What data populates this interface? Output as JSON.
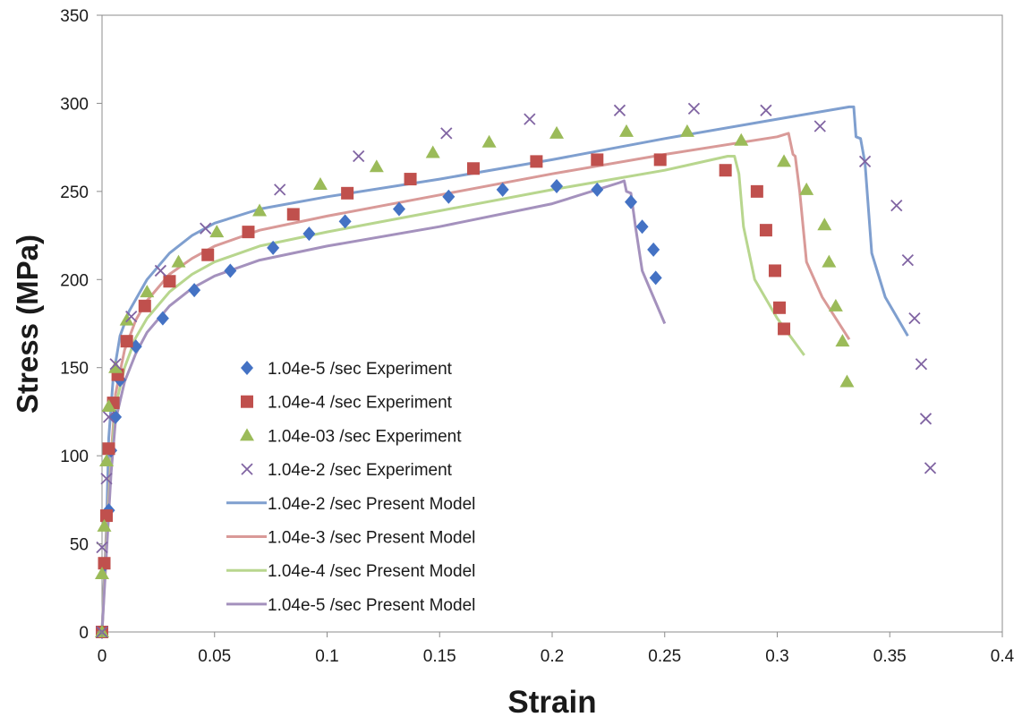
{
  "chart_data": {
    "type": "scatter",
    "title": "",
    "xlabel": "Strain",
    "ylabel": "Stress (MPa)",
    "xlim": [
      0,
      0.4
    ],
    "ylim": [
      0,
      350
    ],
    "x_ticks": [
      "0",
      "0.05",
      "0.1",
      "0.15",
      "0.2",
      "0.25",
      "0.3",
      "0.35",
      "0.4"
    ],
    "y_ticks": [
      "0",
      "50",
      "100",
      "150",
      "200",
      "250",
      "300",
      "350"
    ],
    "grid": false,
    "legend_position": "left-inside",
    "series": [
      {
        "name": "1.04e-5 /sec Experiment",
        "kind": "marker",
        "marker": "diamond",
        "color": "#4472C4",
        "points": [
          [
            0,
            0
          ],
          [
            0.001,
            38
          ],
          [
            0.003,
            69
          ],
          [
            0.004,
            103
          ],
          [
            0.006,
            122
          ],
          [
            0.008,
            143
          ],
          [
            0.015,
            162
          ],
          [
            0.027,
            178
          ],
          [
            0.041,
            194
          ],
          [
            0.057,
            205
          ],
          [
            0.076,
            218
          ],
          [
            0.092,
            226
          ],
          [
            0.108,
            233
          ],
          [
            0.132,
            240
          ],
          [
            0.154,
            247
          ],
          [
            0.178,
            251
          ],
          [
            0.202,
            253
          ],
          [
            0.22,
            251
          ],
          [
            0.235,
            244
          ],
          [
            0.24,
            230
          ],
          [
            0.245,
            217
          ],
          [
            0.246,
            201
          ]
        ]
      },
      {
        "name": "1.04e-4 /sec Experiment",
        "kind": "marker",
        "marker": "square",
        "color": "#C0504D",
        "points": [
          [
            0,
            0
          ],
          [
            0.001,
            39
          ],
          [
            0.002,
            66
          ],
          [
            0.003,
            104
          ],
          [
            0.005,
            130
          ],
          [
            0.007,
            146
          ],
          [
            0.011,
            165
          ],
          [
            0.019,
            185
          ],
          [
            0.03,
            199
          ],
          [
            0.047,
            214
          ],
          [
            0.065,
            227
          ],
          [
            0.085,
            237
          ],
          [
            0.109,
            249
          ],
          [
            0.137,
            257
          ],
          [
            0.165,
            263
          ],
          [
            0.193,
            267
          ],
          [
            0.22,
            268
          ],
          [
            0.248,
            268
          ],
          [
            0.277,
            262
          ],
          [
            0.291,
            250
          ],
          [
            0.295,
            228
          ],
          [
            0.299,
            205
          ],
          [
            0.301,
            184
          ],
          [
            0.303,
            172
          ]
        ]
      },
      {
        "name": "1.04e-03 /sec Experiment",
        "kind": "marker",
        "marker": "triangle",
        "color": "#9BBB59",
        "points": [
          [
            0,
            0
          ],
          [
            0,
            33
          ],
          [
            0.001,
            60
          ],
          [
            0.002,
            97
          ],
          [
            0.003,
            128
          ],
          [
            0.006,
            150
          ],
          [
            0.011,
            177
          ],
          [
            0.02,
            193
          ],
          [
            0.034,
            210
          ],
          [
            0.051,
            227
          ],
          [
            0.07,
            239
          ],
          [
            0.097,
            254
          ],
          [
            0.122,
            264
          ],
          [
            0.147,
            272
          ],
          [
            0.172,
            278
          ],
          [
            0.202,
            283
          ],
          [
            0.233,
            284
          ],
          [
            0.26,
            284
          ],
          [
            0.284,
            279
          ],
          [
            0.303,
            267
          ],
          [
            0.313,
            251
          ],
          [
            0.321,
            231
          ],
          [
            0.323,
            210
          ],
          [
            0.326,
            185
          ],
          [
            0.329,
            165
          ],
          [
            0.331,
            142
          ]
        ]
      },
      {
        "name": "1.04e-2 /sec Experiment",
        "kind": "marker",
        "marker": "cross",
        "color": "#8064A2",
        "points": [
          [
            0,
            0
          ],
          [
            0,
            48
          ],
          [
            0.002,
            87
          ],
          [
            0.003,
            122
          ],
          [
            0.006,
            152
          ],
          [
            0.013,
            179
          ],
          [
            0.026,
            205
          ],
          [
            0.046,
            229
          ],
          [
            0.079,
            251
          ],
          [
            0.114,
            270
          ],
          [
            0.153,
            283
          ],
          [
            0.19,
            291
          ],
          [
            0.23,
            296
          ],
          [
            0.263,
            297
          ],
          [
            0.295,
            296
          ],
          [
            0.319,
            287
          ],
          [
            0.339,
            267
          ],
          [
            0.353,
            242
          ],
          [
            0.358,
            211
          ],
          [
            0.361,
            178
          ],
          [
            0.364,
            152
          ],
          [
            0.366,
            121
          ],
          [
            0.368,
            93
          ]
        ]
      },
      {
        "name": "1.04e-2 /sec Present Model",
        "kind": "line",
        "color": "#7F9FCF",
        "points": [
          [
            0,
            0
          ],
          [
            0.002,
            60
          ],
          [
            0.003,
            110
          ],
          [
            0.005,
            145
          ],
          [
            0.008,
            168
          ],
          [
            0.012,
            182
          ],
          [
            0.02,
            200
          ],
          [
            0.03,
            215
          ],
          [
            0.04,
            225
          ],
          [
            0.05,
            232
          ],
          [
            0.07,
            240
          ],
          [
            0.1,
            247
          ],
          [
            0.15,
            257
          ],
          [
            0.2,
            268
          ],
          [
            0.25,
            280
          ],
          [
            0.3,
            291
          ],
          [
            0.332,
            298
          ],
          [
            0.334,
            298
          ],
          [
            0.335,
            281
          ],
          [
            0.337,
            280
          ],
          [
            0.339,
            266
          ],
          [
            0.342,
            215
          ],
          [
            0.348,
            190
          ],
          [
            0.358,
            168
          ]
        ]
      },
      {
        "name": "1.04e-3 /sec Present Model",
        "kind": "line",
        "color": "#D99A98",
        "points": [
          [
            0,
            0
          ],
          [
            0.002,
            55
          ],
          [
            0.004,
            100
          ],
          [
            0.006,
            135
          ],
          [
            0.01,
            160
          ],
          [
            0.015,
            177
          ],
          [
            0.02,
            188
          ],
          [
            0.03,
            203
          ],
          [
            0.04,
            212
          ],
          [
            0.05,
            219
          ],
          [
            0.07,
            228
          ],
          [
            0.1,
            236
          ],
          [
            0.15,
            248
          ],
          [
            0.2,
            260
          ],
          [
            0.25,
            271
          ],
          [
            0.3,
            281
          ],
          [
            0.305,
            283
          ],
          [
            0.307,
            271
          ],
          [
            0.308,
            270
          ],
          [
            0.31,
            250
          ],
          [
            0.313,
            210
          ],
          [
            0.32,
            190
          ],
          [
            0.332,
            166
          ]
        ]
      },
      {
        "name": "1.04e-4 /sec Present Model",
        "kind": "line",
        "color": "#B8D68E",
        "points": [
          [
            0,
            0
          ],
          [
            0.002,
            50
          ],
          [
            0.004,
            95
          ],
          [
            0.006,
            128
          ],
          [
            0.01,
            150
          ],
          [
            0.015,
            167
          ],
          [
            0.02,
            178
          ],
          [
            0.03,
            193
          ],
          [
            0.04,
            203
          ],
          [
            0.05,
            210
          ],
          [
            0.07,
            219
          ],
          [
            0.1,
            227
          ],
          [
            0.15,
            239
          ],
          [
            0.2,
            251
          ],
          [
            0.25,
            262
          ],
          [
            0.278,
            270
          ],
          [
            0.281,
            270
          ],
          [
            0.283,
            260
          ],
          [
            0.285,
            230
          ],
          [
            0.29,
            200
          ],
          [
            0.3,
            178
          ],
          [
            0.312,
            157
          ]
        ]
      },
      {
        "name": "1.04e-5 /sec Present Model",
        "kind": "line",
        "color": "#A491BD",
        "points": [
          [
            0,
            0
          ],
          [
            0.002,
            45
          ],
          [
            0.004,
            90
          ],
          [
            0.006,
            120
          ],
          [
            0.01,
            142
          ],
          [
            0.015,
            158
          ],
          [
            0.02,
            170
          ],
          [
            0.03,
            185
          ],
          [
            0.04,
            195
          ],
          [
            0.05,
            202
          ],
          [
            0.07,
            211
          ],
          [
            0.1,
            219
          ],
          [
            0.15,
            230
          ],
          [
            0.2,
            243
          ],
          [
            0.23,
            255
          ],
          [
            0.232,
            256
          ],
          [
            0.233,
            250
          ],
          [
            0.235,
            249
          ],
          [
            0.237,
            230
          ],
          [
            0.24,
            205
          ],
          [
            0.245,
            190
          ],
          [
            0.25,
            175
          ]
        ]
      }
    ]
  }
}
